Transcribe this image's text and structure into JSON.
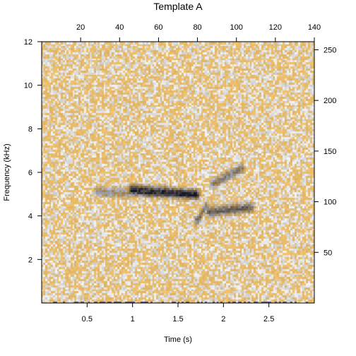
{
  "chart_data": {
    "type": "heatmap",
    "title": "Template A",
    "xlabel": "Time (s)",
    "ylabel": "Frequency (kHz)",
    "xlim": [
      0,
      3.0
    ],
    "ylim": [
      0,
      12
    ],
    "x_ticks": [
      0.5,
      1,
      1.5,
      2,
      2.5
    ],
    "x_tick_labels": [
      "0.5",
      "1",
      "1.5",
      "2",
      "2.5"
    ],
    "y_ticks": [
      2,
      4,
      6,
      8,
      10,
      12
    ],
    "y_tick_labels": [
      "2",
      "4",
      "6",
      "8",
      "10",
      "12"
    ],
    "top_axis": {
      "lim": [
        0,
        140
      ],
      "ticks": [
        20,
        40,
        60,
        80,
        100,
        120,
        140
      ],
      "tick_labels": [
        "20",
        "40",
        "60",
        "80",
        "100",
        "120",
        "140"
      ]
    },
    "right_axis": {
      "lim": [
        0,
        258
      ],
      "ticks": [
        50,
        100,
        150,
        200,
        250
      ],
      "tick_labels": [
        "50",
        "100",
        "150",
        "200",
        "250"
      ]
    },
    "colors": {
      "background_cell": "#f3c46d",
      "light_cell": "#e6e6e6",
      "signal": "#1a1a1a"
    },
    "grid": false,
    "signal_segments": [
      {
        "t0": 0.62,
        "t1": 0.95,
        "f0": 5.15,
        "f1": 5.05,
        "strength": 0.35
      },
      {
        "t0": 1.0,
        "t1": 1.7,
        "f0": 5.2,
        "f1": 5.0,
        "strength": 0.9
      },
      {
        "t0": 1.85,
        "t1": 2.3,
        "f0": 4.2,
        "f1": 4.4,
        "strength": 0.6
      },
      {
        "t0": 1.72,
        "t1": 1.8,
        "f0": 3.8,
        "f1": 4.4,
        "strength": 0.5
      },
      {
        "t0": 1.9,
        "t1": 2.2,
        "f0": 5.5,
        "f1": 6.2,
        "strength": 0.45
      }
    ]
  }
}
